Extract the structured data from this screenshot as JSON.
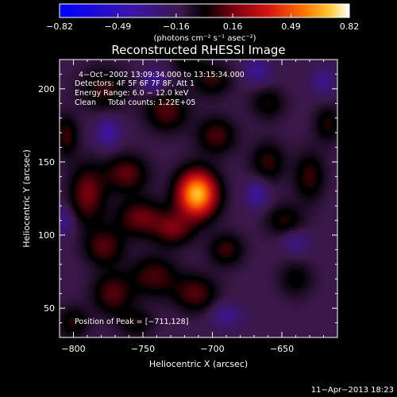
{
  "chart_data": {
    "type": "heatmap",
    "title": "Reconstructed RHESSI Image",
    "xlabel": "Heliocentric X (arcsec)",
    "ylabel": "Heliocentric Y (arcsec)",
    "xlim": [
      -810,
      -610
    ],
    "ylim": [
      30,
      220
    ],
    "xticks": [
      -800,
      -750,
      -700,
      -650
    ],
    "yticks": [
      50,
      100,
      150,
      200
    ],
    "colorbar": {
      "ticks": [
        -0.82,
        -0.49,
        -0.16,
        0.16,
        0.49,
        0.82
      ],
      "tick_labels": [
        "−0.82",
        "−0.49",
        "−0.16",
        "0.16",
        "0.49",
        "0.82"
      ],
      "range": [
        -0.82,
        0.82
      ],
      "unit_label": "(photons cm⁻² s⁻¹ asec⁻²)"
    },
    "annotations": [
      "4−Oct−2002 13:09:34.000 to 13:15:34.000",
      "Detectors: 4F 5F 6F 7F 8F, Att 1",
      "Energy Range: 6.0 − 12.0 keV",
      "Clean     Total counts: 1.22E+05"
    ],
    "peak_label": "Position of Peak = [−711,128]",
    "peak": {
      "x": -711,
      "y": 128,
      "value": 0.82
    },
    "timestamp": "11−Apr−2013 18:23",
    "blobs": [
      {
        "x": -711,
        "y": 128,
        "sx": 10,
        "sy": 11,
        "amp": 1.0
      },
      {
        "x": -790,
        "y": 128,
        "sx": 9,
        "sy": 14,
        "amp": 0.36
      },
      {
        "x": -762,
        "y": 142,
        "sx": 11,
        "sy": 9,
        "amp": 0.32
      },
      {
        "x": -752,
        "y": 112,
        "sx": 12,
        "sy": 9,
        "amp": 0.34
      },
      {
        "x": -728,
        "y": 104,
        "sx": 10,
        "sy": 8,
        "amp": 0.33
      },
      {
        "x": -778,
        "y": 92,
        "sx": 10,
        "sy": 9,
        "amp": 0.3
      },
      {
        "x": -772,
        "y": 60,
        "sx": 10,
        "sy": 10,
        "amp": 0.3
      },
      {
        "x": -742,
        "y": 72,
        "sx": 12,
        "sy": 10,
        "amp": 0.28
      },
      {
        "x": -712,
        "y": 60,
        "sx": 11,
        "sy": 9,
        "amp": 0.3
      },
      {
        "x": -690,
        "y": 90,
        "sx": 9,
        "sy": 8,
        "amp": 0.26
      },
      {
        "x": -733,
        "y": 185,
        "sx": 11,
        "sy": 10,
        "amp": 0.3
      },
      {
        "x": -697,
        "y": 168,
        "sx": 10,
        "sy": 9,
        "amp": 0.28
      },
      {
        "x": -778,
        "y": 200,
        "sx": 12,
        "sy": 10,
        "amp": 0.26
      },
      {
        "x": -700,
        "y": 206,
        "sx": 10,
        "sy": 8,
        "amp": 0.24
      },
      {
        "x": -660,
        "y": 150,
        "sx": 9,
        "sy": 10,
        "amp": 0.24
      },
      {
        "x": -630,
        "y": 140,
        "sx": 8,
        "sy": 12,
        "amp": 0.25
      },
      {
        "x": -648,
        "y": 110,
        "sx": 10,
        "sy": 8,
        "amp": 0.22
      },
      {
        "x": -617,
        "y": 176,
        "sx": 7,
        "sy": 9,
        "amp": 0.22
      },
      {
        "x": -660,
        "y": 190,
        "sx": 9,
        "sy": 8,
        "amp": 0.2
      },
      {
        "x": -640,
        "y": 70,
        "sx": 9,
        "sy": 9,
        "amp": 0.18
      },
      {
        "x": -800,
        "y": 40,
        "sx": 8,
        "sy": 8,
        "amp": 0.22
      },
      {
        "x": -755,
        "y": 40,
        "sx": 9,
        "sy": 7,
        "amp": 0.2
      },
      {
        "x": -718,
        "y": 218,
        "sx": 8,
        "sy": 6,
        "amp": 0.18
      },
      {
        "x": -805,
        "y": 168,
        "sx": 6,
        "sy": 10,
        "amp": 0.26
      },
      {
        "x": -775,
        "y": 170,
        "sx": 6,
        "sy": 7,
        "amp": -0.3
      },
      {
        "x": -742,
        "y": 205,
        "sx": 6,
        "sy": 6,
        "amp": -0.28
      },
      {
        "x": -668,
        "y": 212,
        "sx": 7,
        "sy": 6,
        "amp": -0.25
      },
      {
        "x": -668,
        "y": 128,
        "sx": 6,
        "sy": 7,
        "amp": -0.28
      },
      {
        "x": -620,
        "y": 205,
        "sx": 6,
        "sy": 7,
        "amp": -0.22
      },
      {
        "x": -640,
        "y": 95,
        "sx": 7,
        "sy": 6,
        "amp": -0.2
      },
      {
        "x": -690,
        "y": 45,
        "sx": 8,
        "sy": 6,
        "amp": -0.22
      },
      {
        "x": -808,
        "y": 110,
        "sx": 6,
        "sy": 7,
        "amp": -0.22
      }
    ]
  }
}
